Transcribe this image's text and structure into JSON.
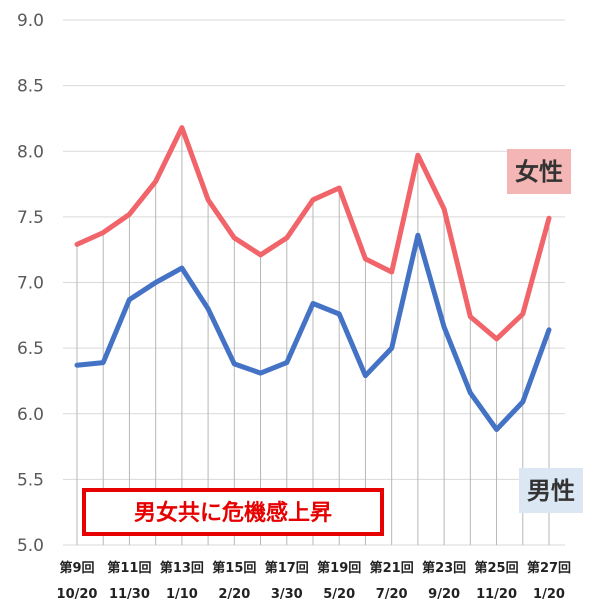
{
  "chart_data": {
    "type": "line",
    "title": "",
    "xlabel": "",
    "ylabel": "",
    "ylim": [
      5.0,
      9.0
    ],
    "yticks": [
      "5.0",
      "5.5",
      "6.0",
      "6.5",
      "7.0",
      "7.5",
      "8.0",
      "8.5",
      "9.0"
    ],
    "ytick_values": [
      5.0,
      5.5,
      6.0,
      6.5,
      7.0,
      7.5,
      8.0,
      8.5,
      9.0
    ],
    "grid": "horizontal and vertical",
    "categories": [
      "第9回 10/20",
      "",
      "第11回 11/30",
      "",
      "第13回 1/10",
      "",
      "第15回 2/20",
      "",
      "第17回 3/30",
      "",
      "第19回 5/20",
      "",
      "第21回 7/20",
      "",
      "第23回 9/20",
      "",
      "第25回 11/20",
      "",
      "第27回 1/20"
    ],
    "x_labels": [
      {
        "index": 0,
        "line1": "第9回",
        "line2": "10/20"
      },
      {
        "index": 2,
        "line1": "第11回",
        "line2": "11/30"
      },
      {
        "index": 4,
        "line1": "第13回",
        "line2": "1/10"
      },
      {
        "index": 6,
        "line1": "第15回",
        "line2": "2/20"
      },
      {
        "index": 8,
        "line1": "第17回",
        "line2": "3/30"
      },
      {
        "index": 10,
        "line1": "第19回",
        "line2": "5/20"
      },
      {
        "index": 12,
        "line1": "第21回",
        "line2": "7/20"
      },
      {
        "index": 14,
        "line1": "第23回",
        "line2": "9/20"
      },
      {
        "index": 16,
        "line1": "第25回",
        "line2": "11/20"
      },
      {
        "index": 18,
        "line1": "第27回",
        "line2": "1/20"
      }
    ],
    "series": [
      {
        "name": "女性",
        "color": "#f0646a",
        "values": [
          7.29,
          7.38,
          7.52,
          7.77,
          8.18,
          7.63,
          7.34,
          7.21,
          7.34,
          7.63,
          7.72,
          7.18,
          7.08,
          7.97,
          7.56,
          6.74,
          6.57,
          6.76,
          7.49
        ]
      },
      {
        "name": "男性",
        "color": "#4472c4",
        "values": [
          6.37,
          6.39,
          6.87,
          7.0,
          7.11,
          6.8,
          6.38,
          6.31,
          6.39,
          6.84,
          6.76,
          6.29,
          6.5,
          7.36,
          6.66,
          6.16,
          5.88,
          6.09,
          6.64
        ]
      }
    ],
    "series_labels": [
      {
        "text": "女性",
        "background": "#f4b6b4"
      },
      {
        "text": "男性",
        "background": "#dce7f4"
      }
    ],
    "annotation": {
      "text": "男女共に危機感上昇",
      "color": "#e60000"
    }
  }
}
